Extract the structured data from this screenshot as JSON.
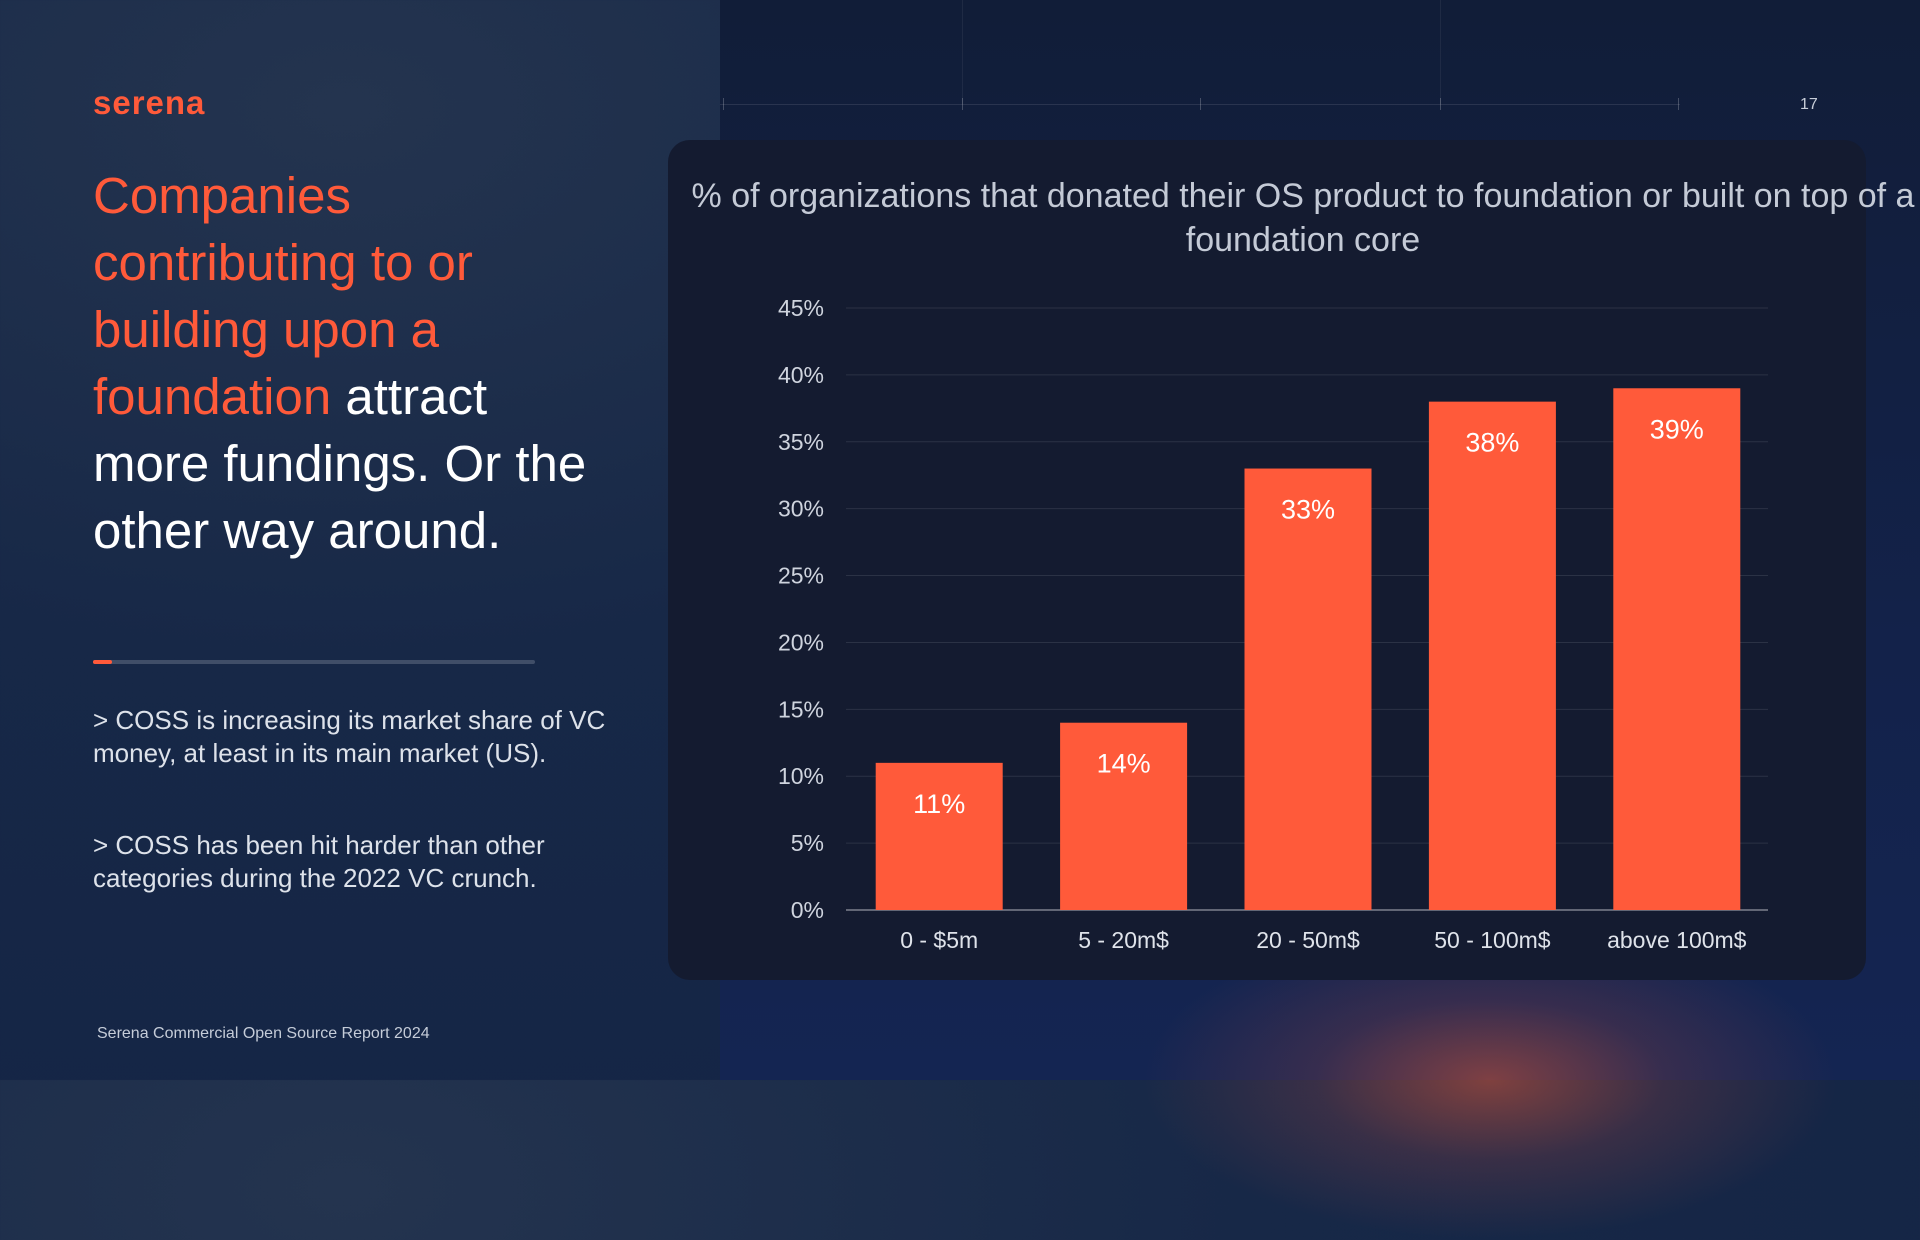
{
  "brand": {
    "logo": "serena"
  },
  "page_number": "17",
  "headline": {
    "accent": "Companies contributing to or building upon a foundation",
    "rest": " attract more fundings. Or the other way around."
  },
  "bullets": [
    "> COSS is increasing its market share of VC money, at least in its main market (US).",
    "> COSS has been hit harder than other categories during the 2022 VC crunch."
  ],
  "footer": "Serena Commercial Open Source Report 2024",
  "colors": {
    "accent": "#ff5a3a",
    "bar": "#ff5a3a",
    "panel": "#141b30"
  },
  "chart_data": {
    "type": "bar",
    "title": "% of organizations that donated their OS product to foundation or built on top of a foundation core",
    "categories": [
      "0 - $5m",
      "5 - 20m$",
      "20 - 50m$",
      "50 - 100m$",
      "above 100m$"
    ],
    "values": [
      11,
      14,
      33,
      38,
      39
    ],
    "value_labels": [
      "11%",
      "14%",
      "33%",
      "38%",
      "39%"
    ],
    "ylim": [
      0,
      45
    ],
    "yticks": [
      "0%",
      "5%",
      "10%",
      "15%",
      "20%",
      "25%",
      "30%",
      "35%",
      "40%",
      "45%"
    ],
    "grid": true,
    "xlabel": "",
    "ylabel": ""
  }
}
